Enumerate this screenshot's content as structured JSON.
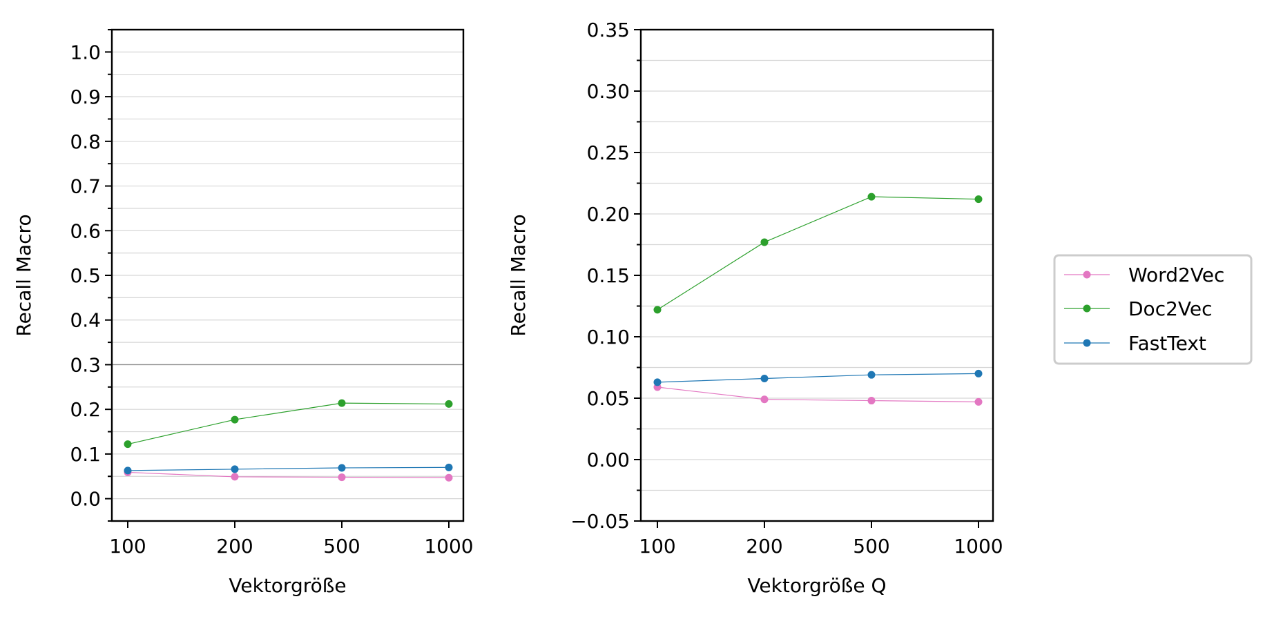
{
  "chart_data": [
    {
      "type": "line",
      "categories": [
        "100",
        "200",
        "500",
        "1000"
      ],
      "xlabel": "Vektorgröße",
      "ylabel": "Recall Macro",
      "ylim": [
        -0.05,
        1.05
      ],
      "yticks": [
        "0.0",
        "0.1",
        "0.2",
        "0.3",
        "0.4",
        "0.5",
        "0.6",
        "0.7",
        "0.8",
        "0.9",
        "1.0"
      ],
      "ytick_values": [
        0.0,
        0.1,
        0.2,
        0.3,
        0.4,
        0.5,
        0.6,
        0.7,
        0.8,
        0.9,
        1.0
      ],
      "reference_line": 0.3,
      "grid": true,
      "series": [
        {
          "name": "Word2Vec",
          "color": "#e377c2",
          "values": [
            0.059,
            0.049,
            0.048,
            0.047
          ]
        },
        {
          "name": "Doc2Vec",
          "color": "#2ca02c",
          "values": [
            0.122,
            0.177,
            0.214,
            0.212
          ]
        },
        {
          "name": "FastText",
          "color": "#1f77b4",
          "values": [
            0.063,
            0.066,
            0.069,
            0.07
          ]
        }
      ]
    },
    {
      "type": "line",
      "categories": [
        "100",
        "200",
        "500",
        "1000"
      ],
      "xlabel": "Vektorgröße Q",
      "ylabel": "Recall Macro",
      "ylim": [
        -0.05,
        0.35
      ],
      "yticks": [
        "−0.05",
        "0.00",
        "0.05",
        "0.10",
        "0.15",
        "0.20",
        "0.25",
        "0.30",
        "0.35"
      ],
      "ytick_values": [
        -0.05,
        0.0,
        0.05,
        0.1,
        0.15,
        0.2,
        0.25,
        0.3,
        0.35
      ],
      "grid": true,
      "series": [
        {
          "name": "Word2Vec",
          "color": "#e377c2",
          "values": [
            0.059,
            0.049,
            0.048,
            0.047
          ]
        },
        {
          "name": "Doc2Vec",
          "color": "#2ca02c",
          "values": [
            0.122,
            0.177,
            0.214,
            0.212
          ]
        },
        {
          "name": "FastText",
          "color": "#1f77b4",
          "values": [
            0.063,
            0.066,
            0.069,
            0.07
          ]
        }
      ]
    }
  ],
  "legend": {
    "placement": "right",
    "entries": [
      {
        "name": "Word2Vec",
        "color": "#e377c2"
      },
      {
        "name": "Doc2Vec",
        "color": "#2ca02c"
      },
      {
        "name": "FastText",
        "color": "#1f77b4"
      }
    ]
  }
}
